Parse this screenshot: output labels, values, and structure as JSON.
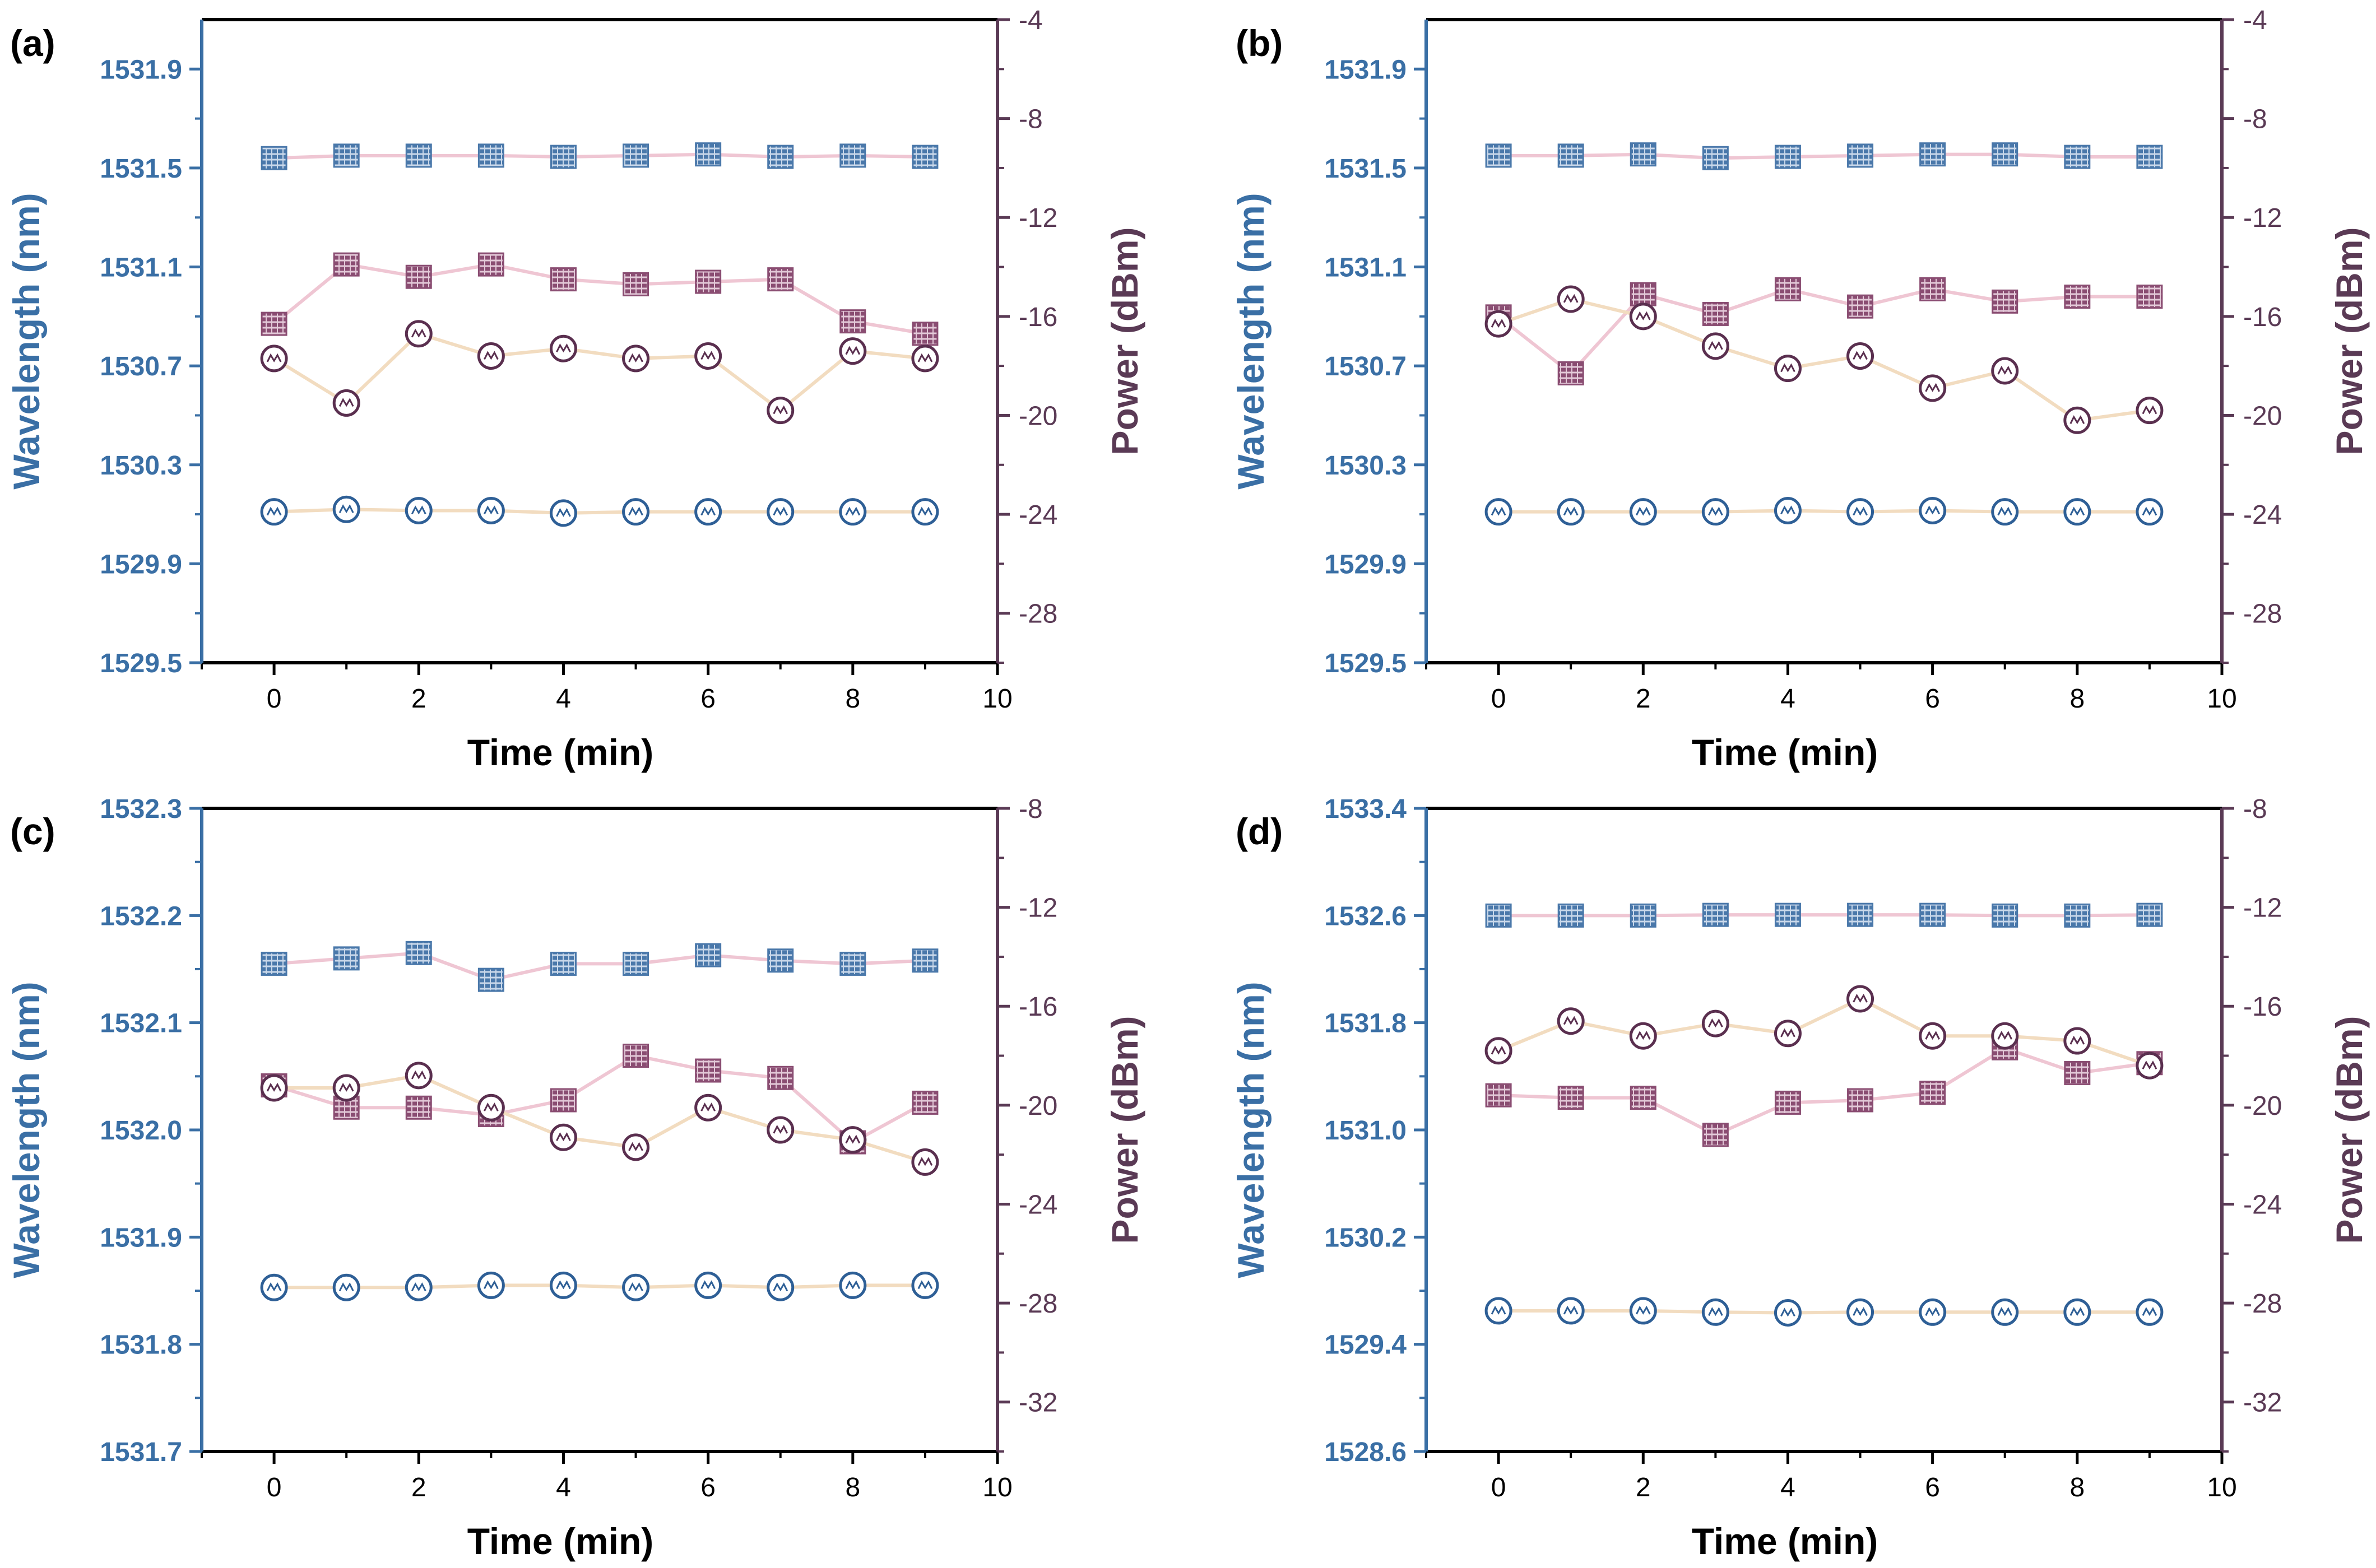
{
  "colors": {
    "wavelength_axis": "#3a6fa5",
    "power_axis": "#5a3a55",
    "wavelength_line": "#f2dcc0",
    "power_line": "#efc6d3",
    "square_marker_blue": "#4a78aa",
    "square_marker_purple": "#8a4d72",
    "circle_marker_blue": "#2e5f96",
    "circle_marker_purple": "#5a2f4f"
  },
  "legend_markers": {
    "square_icon": "square-wave-marker-icon",
    "circle_icon": "circle-wave-marker-icon"
  },
  "chart_data": [
    {
      "type": "line",
      "panel_label": "(a)",
      "xlabel": "Time (min)",
      "ylabel_left": "Wavelength (nm)",
      "ylabel_right": "Power (dBm)",
      "xlim": [
        -1,
        10
      ],
      "xticks": [
        "0",
        "2",
        "4",
        "6",
        "8",
        "10"
      ],
      "ylim_left": [
        1529.5,
        1532.1
      ],
      "yticks_left": [
        "1529.5",
        "1529.9",
        "1530.3",
        "1530.7",
        "1531.1",
        "1531.5",
        "1531.9"
      ],
      "ylim_right": [
        -30,
        -4
      ],
      "yticks_right": [
        "-4",
        "-8",
        "-12",
        "-16",
        "-20",
        "-24",
        "-28"
      ],
      "x": [
        0,
        1,
        2,
        3,
        4,
        5,
        6,
        7,
        8,
        9
      ],
      "series": [
        {
          "name": "Wavelength (square)",
          "axis": "left",
          "marker": "square",
          "marker_color": "#4a78aa",
          "line_color": "#efc6d3",
          "values": [
            1531.54,
            1531.55,
            1531.55,
            1531.55,
            1531.545,
            1531.55,
            1531.555,
            1531.545,
            1531.55,
            1531.545
          ]
        },
        {
          "name": "Wavelength (circle)",
          "axis": "left",
          "marker": "circle",
          "marker_color": "#2e5f96",
          "line_color": "#f2dcc0",
          "values": [
            1530.11,
            1530.12,
            1530.115,
            1530.115,
            1530.105,
            1530.11,
            1530.11,
            1530.11,
            1530.11,
            1530.11
          ]
        },
        {
          "name": "Power (square)",
          "axis": "right",
          "marker": "square",
          "marker_color": "#8a4d72",
          "line_color": "#efc6d3",
          "values": [
            -16.3,
            -13.9,
            -14.4,
            -13.9,
            -14.5,
            -14.7,
            -14.6,
            -14.5,
            -16.2,
            -16.7
          ]
        },
        {
          "name": "Power (circle)",
          "axis": "right",
          "marker": "circle",
          "marker_color": "#5a2f4f",
          "line_color": "#f2dcc0",
          "values": [
            -17.7,
            -19.5,
            -16.7,
            -17.6,
            -17.3,
            -17.7,
            -17.6,
            -19.8,
            -17.4,
            -17.7
          ]
        }
      ]
    },
    {
      "type": "line",
      "panel_label": "(b)",
      "xlabel": "Time (min)",
      "ylabel_left": "Wavelength (nm)",
      "ylabel_right": "Power (dBm)",
      "xlim": [
        -1,
        10
      ],
      "xticks": [
        "0",
        "2",
        "4",
        "6",
        "8",
        "10"
      ],
      "ylim_left": [
        1529.5,
        1532.1
      ],
      "yticks_left": [
        "1529.5",
        "1529.9",
        "1530.3",
        "1530.7",
        "1531.1",
        "1531.5",
        "1531.9"
      ],
      "ylim_right": [
        -30,
        -4
      ],
      "yticks_right": [
        "-4",
        "-8",
        "-12",
        "-16",
        "-20",
        "-24",
        "-28"
      ],
      "x": [
        0,
        1,
        2,
        3,
        4,
        5,
        6,
        7,
        8,
        9
      ],
      "series": [
        {
          "name": "Wavelength (square)",
          "axis": "left",
          "marker": "square",
          "marker_color": "#4a78aa",
          "line_color": "#efc6d3",
          "values": [
            1531.55,
            1531.55,
            1531.555,
            1531.54,
            1531.545,
            1531.55,
            1531.555,
            1531.555,
            1531.545,
            1531.545
          ]
        },
        {
          "name": "Wavelength (circle)",
          "axis": "left",
          "marker": "circle",
          "marker_color": "#2e5f96",
          "line_color": "#f2dcc0",
          "values": [
            1530.11,
            1530.11,
            1530.11,
            1530.11,
            1530.115,
            1530.11,
            1530.115,
            1530.11,
            1530.11,
            1530.11
          ]
        },
        {
          "name": "Power (square)",
          "axis": "right",
          "marker": "square",
          "marker_color": "#8a4d72",
          "line_color": "#efc6d3",
          "values": [
            -16.0,
            -18.3,
            -15.1,
            -15.9,
            -14.9,
            -15.6,
            -14.9,
            -15.4,
            -15.2,
            -15.2
          ]
        },
        {
          "name": "Power (circle)",
          "axis": "right",
          "marker": "circle",
          "marker_color": "#5a2f4f",
          "line_color": "#f2dcc0",
          "values": [
            -16.3,
            -15.3,
            -16.0,
            -17.2,
            -18.1,
            -17.6,
            -18.9,
            -18.2,
            -20.2,
            -19.8
          ]
        }
      ]
    },
    {
      "type": "line",
      "panel_label": "(c)",
      "xlabel": "Time (min)",
      "ylabel_left": "Wavelength (nm)",
      "ylabel_right": "Power (dBm)",
      "xlim": [
        -1,
        10
      ],
      "xticks": [
        "0",
        "2",
        "4",
        "6",
        "8",
        "10"
      ],
      "ylim_left": [
        1531.7,
        1532.3
      ],
      "yticks_left": [
        "1531.7",
        "1531.8",
        "1531.9",
        "1532.0",
        "1532.1",
        "1532.2",
        "1532.3"
      ],
      "ylim_right": [
        -34,
        -8
      ],
      "yticks_right": [
        "-8",
        "-12",
        "-16",
        "-20",
        "-24",
        "-28",
        "-32"
      ],
      "x": [
        0,
        1,
        2,
        3,
        4,
        5,
        6,
        7,
        8,
        9
      ],
      "series": [
        {
          "name": "Wavelength (square)",
          "axis": "left",
          "marker": "square",
          "marker_color": "#4a78aa",
          "line_color": "#efc6d3",
          "values": [
            1532.155,
            1532.16,
            1532.165,
            1532.14,
            1532.155,
            1532.155,
            1532.163,
            1532.158,
            1532.155,
            1532.158
          ]
        },
        {
          "name": "Wavelength (circle)",
          "axis": "left",
          "marker": "circle",
          "marker_color": "#2e5f96",
          "line_color": "#f2dcc0",
          "values": [
            1531.853,
            1531.853,
            1531.853,
            1531.855,
            1531.855,
            1531.853,
            1531.855,
            1531.853,
            1531.855,
            1531.855
          ]
        },
        {
          "name": "Power (square)",
          "axis": "right",
          "marker": "square",
          "marker_color": "#8a4d72",
          "line_color": "#efc6d3",
          "values": [
            -19.2,
            -20.1,
            -20.1,
            -20.4,
            -19.8,
            -18.0,
            -18.6,
            -18.9,
            -21.5,
            -19.9
          ]
        },
        {
          "name": "Power (circle)",
          "axis": "right",
          "marker": "circle",
          "marker_color": "#5a2f4f",
          "line_color": "#f2dcc0",
          "values": [
            -19.3,
            -19.3,
            -18.8,
            -20.1,
            -21.3,
            -21.7,
            -20.1,
            -21.0,
            -21.4,
            -22.3
          ]
        }
      ]
    },
    {
      "type": "line",
      "panel_label": "(d)",
      "xlabel": "Time (min)",
      "ylabel_left": "Wavelength (nm)",
      "ylabel_right": "Power (dBm)",
      "xlim": [
        -1,
        10
      ],
      "xticks": [
        "0",
        "2",
        "4",
        "6",
        "8",
        "10"
      ],
      "ylim_left": [
        1528.6,
        1533.4
      ],
      "yticks_left": [
        "1528.6",
        "1529.4",
        "1530.2",
        "1531.0",
        "1531.8",
        "1532.6",
        "1533.4"
      ],
      "ylim_right": [
        -34,
        -8
      ],
      "yticks_right": [
        "-8",
        "-12",
        "-16",
        "-20",
        "-24",
        "-28",
        "-32"
      ],
      "x": [
        0,
        1,
        2,
        3,
        4,
        5,
        6,
        7,
        8,
        9
      ],
      "series": [
        {
          "name": "Wavelength (square)",
          "axis": "left",
          "marker": "square",
          "marker_color": "#4a78aa",
          "line_color": "#efc6d3",
          "values": [
            1532.6,
            1532.6,
            1532.6,
            1532.605,
            1532.605,
            1532.605,
            1532.605,
            1532.6,
            1532.6,
            1532.605
          ]
        },
        {
          "name": "Wavelength (circle)",
          "axis": "left",
          "marker": "circle",
          "marker_color": "#2e5f96",
          "line_color": "#f2dcc0",
          "values": [
            1529.65,
            1529.65,
            1529.65,
            1529.64,
            1529.635,
            1529.64,
            1529.64,
            1529.64,
            1529.64,
            1529.64
          ]
        },
        {
          "name": "Power (square)",
          "axis": "right",
          "marker": "square",
          "marker_color": "#8a4d72",
          "line_color": "#efc6d3",
          "values": [
            -19.6,
            -19.7,
            -19.7,
            -21.2,
            -19.9,
            -19.8,
            -19.5,
            -17.7,
            -18.7,
            -18.3
          ]
        },
        {
          "name": "Power (circle)",
          "axis": "right",
          "marker": "circle",
          "marker_color": "#5a2f4f",
          "line_color": "#f2dcc0",
          "values": [
            -17.8,
            -16.6,
            -17.2,
            -16.7,
            -17.1,
            -15.7,
            -17.2,
            -17.2,
            -17.4,
            -18.4
          ]
        }
      ]
    }
  ]
}
